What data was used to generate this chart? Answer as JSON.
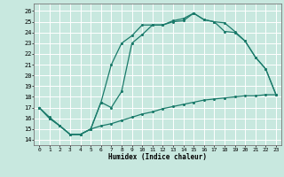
{
  "title": "",
  "xlabel": "Humidex (Indice chaleur)",
  "background_color": "#c8e8df",
  "grid_color": "#ffffff",
  "line_color": "#1a7a6a",
  "xlim": [
    -0.5,
    23.5
  ],
  "ylim": [
    13.5,
    26.7
  ],
  "xticks": [
    0,
    1,
    2,
    3,
    4,
    5,
    6,
    7,
    8,
    9,
    10,
    11,
    12,
    13,
    14,
    15,
    16,
    17,
    18,
    19,
    20,
    21,
    22,
    23
  ],
  "yticks": [
    14,
    15,
    16,
    17,
    18,
    19,
    20,
    21,
    22,
    23,
    24,
    25,
    26
  ],
  "line_upper_x": [
    0,
    1,
    2,
    3,
    4,
    5,
    6,
    7,
    8,
    9,
    10,
    11,
    12,
    13,
    14,
    15,
    16,
    17,
    18,
    19,
    20,
    21,
    22,
    23
  ],
  "line_upper_y": [
    17.0,
    16.0,
    15.3,
    14.5,
    14.5,
    15.0,
    17.5,
    21.0,
    23.0,
    23.7,
    24.7,
    24.7,
    24.7,
    25.1,
    25.3,
    25.8,
    25.2,
    25.0,
    24.9,
    24.1,
    23.2,
    21.7,
    20.6,
    18.2
  ],
  "line_mid_x": [
    0,
    1,
    2,
    3,
    4,
    5,
    6,
    7,
    8,
    9,
    10,
    11,
    12,
    13,
    14,
    15,
    16,
    17,
    18,
    19,
    20,
    21,
    22,
    23
  ],
  "line_mid_y": [
    17.0,
    16.0,
    15.3,
    14.5,
    14.5,
    15.0,
    17.5,
    17.0,
    18.5,
    23.0,
    23.8,
    24.7,
    24.7,
    25.0,
    25.1,
    25.8,
    25.2,
    25.0,
    24.1,
    24.0,
    23.2,
    21.7,
    20.6,
    18.2
  ],
  "line_low_x": [
    0,
    1,
    2,
    3,
    4,
    5,
    6,
    7,
    8,
    9,
    10,
    11,
    12,
    13,
    14,
    15,
    16,
    17,
    18,
    19,
    20,
    21,
    22,
    23
  ],
  "line_low_y": [
    17.0,
    16.1,
    15.3,
    14.5,
    14.5,
    15.0,
    15.3,
    15.5,
    15.8,
    16.1,
    16.4,
    16.6,
    16.9,
    17.1,
    17.3,
    17.5,
    17.7,
    17.8,
    17.9,
    18.0,
    18.1,
    18.1,
    18.2,
    18.2
  ]
}
